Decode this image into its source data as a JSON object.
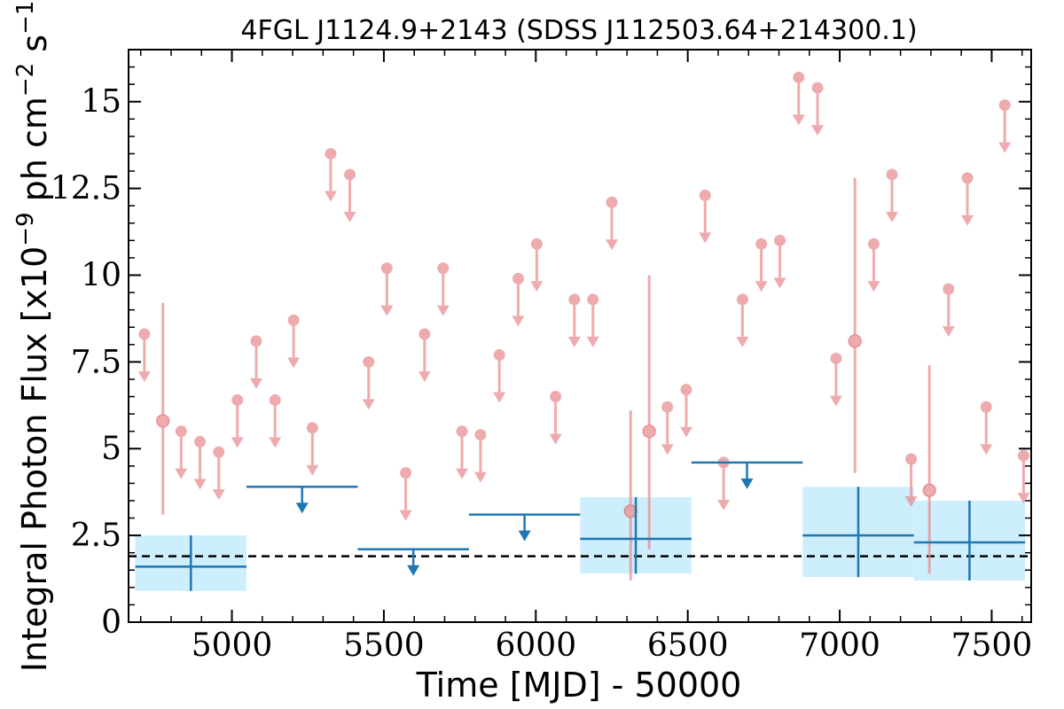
{
  "chart_data": {
    "type": "scatter",
    "title": "4FGL J1124.9+2143 (SDSS J112503.64+214300.1)",
    "xlabel": "Time [MJD] - 50000",
    "ylabel": "Integral Photon Flux [x10^-9 ph cm^-2 s^-1]",
    "xlim": [
      4660,
      7630
    ],
    "ylim": [
      0,
      16.5
    ],
    "x_ticks": [
      5000,
      5500,
      6000,
      6500,
      7000,
      7500
    ],
    "y_ticks": [
      0,
      2.5,
      5,
      7.5,
      10,
      12.5,
      15
    ],
    "y_tick_labels": [
      "0",
      "2.5",
      "5",
      "7.5",
      "10",
      "12.5",
      "15"
    ],
    "colors": {
      "short_bins": "#e8888c",
      "long_bins": "#1f77b4",
      "long_bins_band": "#cdeefc",
      "mean_line": "#000000"
    },
    "mean_flux": 1.9,
    "series": [
      {
        "bin": "short",
        "upper_limits": [
          [
            4712,
            8.3
          ],
          [
            4833,
            5.5
          ],
          [
            4895,
            5.2
          ],
          [
            4957,
            4.9
          ],
          [
            5018,
            6.4
          ],
          [
            5080,
            8.1
          ],
          [
            5142,
            6.4
          ],
          [
            5203,
            8.7
          ],
          [
            5265,
            5.6
          ],
          [
            5325,
            13.5
          ],
          [
            5388,
            12.9
          ],
          [
            5450,
            7.5
          ],
          [
            5510,
            10.2
          ],
          [
            5572,
            4.3
          ],
          [
            5634,
            8.3
          ],
          [
            5695,
            10.2
          ],
          [
            5757,
            5.5
          ],
          [
            5818,
            5.4
          ],
          [
            5880,
            7.7
          ],
          [
            5942,
            9.9
          ],
          [
            6003,
            10.9
          ],
          [
            6065,
            6.5
          ],
          [
            6127,
            9.3
          ],
          [
            6188,
            9.3
          ],
          [
            6250,
            12.1
          ],
          [
            6433,
            6.2
          ],
          [
            6495,
            6.7
          ],
          [
            6557,
            12.3
          ],
          [
            6618,
            4.6
          ],
          [
            6680,
            9.3
          ],
          [
            6742,
            10.9
          ],
          [
            6803,
            11.0
          ],
          [
            6865,
            15.7
          ],
          [
            6927,
            15.4
          ],
          [
            6988,
            7.6
          ],
          [
            7112,
            10.9
          ],
          [
            7172,
            12.9
          ],
          [
            7235,
            4.7
          ],
          [
            7358,
            9.6
          ],
          [
            7420,
            12.8
          ],
          [
            7482,
            6.2
          ],
          [
            7543,
            14.9
          ],
          [
            7605,
            4.8
          ]
        ],
        "detections": [
          {
            "x": 4773,
            "y": 5.8,
            "yerr_low": 2.7,
            "yerr_high": 3.4
          },
          {
            "x": 6312,
            "y": 3.2,
            "yerr_low": 2.0,
            "yerr_high": 2.9
          },
          {
            "x": 6373,
            "y": 5.5,
            "yerr_low": 3.4,
            "yerr_high": 4.5
          },
          {
            "x": 7050,
            "y": 8.1,
            "yerr_low": 3.8,
            "yerr_high": 4.7
          },
          {
            "x": 7295,
            "y": 3.8,
            "yerr_low": 2.4,
            "yerr_high": 3.6
          }
        ]
      },
      {
        "bin": "long",
        "upper_limits": [
          {
            "x0": 5048,
            "x1": 5414,
            "y": 3.9
          },
          {
            "x0": 5414,
            "x1": 5780,
            "y": 2.1
          },
          {
            "x0": 5780,
            "x1": 6146,
            "y": 3.1
          },
          {
            "x0": 6512,
            "x1": 6878,
            "y": 4.6
          }
        ],
        "detections": [
          {
            "x0": 4682,
            "x1": 5048,
            "x": 4865,
            "y": 1.6,
            "y_low": 0.9,
            "y_high": 2.5
          },
          {
            "x0": 6146,
            "x1": 6512,
            "x": 6329,
            "y": 2.4,
            "y_low": 1.4,
            "y_high": 3.6
          },
          {
            "x0": 6878,
            "x1": 7244,
            "x": 7061,
            "y": 2.5,
            "y_low": 1.3,
            "y_high": 3.9
          },
          {
            "x0": 7244,
            "x1": 7610,
            "x": 7427,
            "y": 2.3,
            "y_low": 1.2,
            "y_high": 3.5
          }
        ]
      }
    ]
  }
}
